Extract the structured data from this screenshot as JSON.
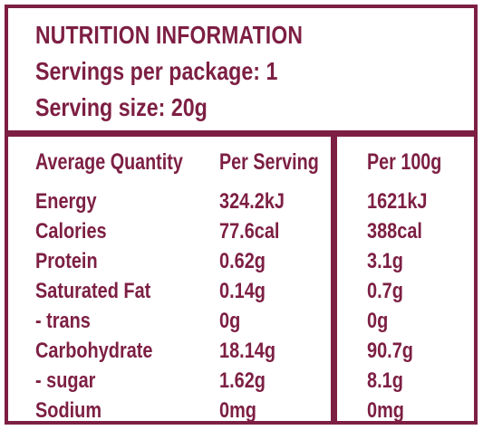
{
  "panel": {
    "title": "NUTRITION INFORMATION",
    "servings_per_package": "Servings per package: 1",
    "serving_size": "Serving size: 20g"
  },
  "table": {
    "headers": {
      "average_quantity": "Average Quantity",
      "per_serving": "Per Serving",
      "per_100g": "Per 100g"
    },
    "rows": [
      {
        "label": "Energy",
        "per_serving": "324.2kJ",
        "per_100g": "1621kJ"
      },
      {
        "label": "Calories",
        "per_serving": "77.6cal",
        "per_100g": "388cal"
      },
      {
        "label": "Protein",
        "per_serving": "0.62g",
        "per_100g": "3.1g"
      },
      {
        "label": "Saturated Fat",
        "per_serving": "0.14g",
        "per_100g": "0.7g"
      },
      {
        "label": "- trans",
        "per_serving": "0g",
        "per_100g": "0g"
      },
      {
        "label": "Carbohydrate",
        "per_serving": "18.14g",
        "per_100g": "90.7g"
      },
      {
        "label": "- sugar",
        "per_serving": "1.62g",
        "per_100g": "8.1g"
      },
      {
        "label": "Sodium",
        "per_serving": "0mg",
        "per_100g": "0mg"
      }
    ]
  },
  "colors": {
    "accent": "#7d1f43",
    "background": "#ffffff"
  }
}
